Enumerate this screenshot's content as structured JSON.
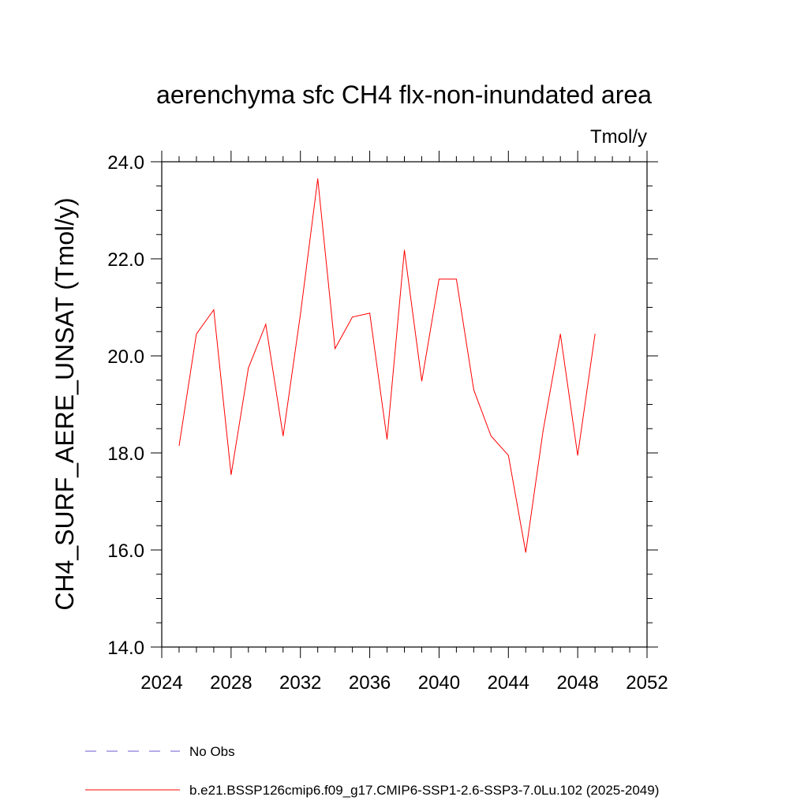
{
  "chart_data": {
    "type": "line",
    "title": "aerenchyma sfc CH4 flx-non-inundated area",
    "units_label": "Tmol/y",
    "ylabel": "CH4_SURF_AERE_UNSAT  (Tmol/y)",
    "xlabel": "",
    "xlim": [
      2024,
      2052
    ],
    "ylim": [
      14.0,
      24.0
    ],
    "x_ticks": [
      "2024",
      "2028",
      "2032",
      "2036",
      "2040",
      "2044",
      "2048",
      "2052"
    ],
    "y_ticks": [
      "14.0",
      "16.0",
      "18.0",
      "20.0",
      "22.0",
      "24.0"
    ],
    "grid": false,
    "legend_position": "bottom",
    "series": [
      {
        "name": "b.e21.BSSP126cmip6.f09_g17.CMIP6-SSP1-2.6-SSP3-7.0Lu.102 (2025-2049)",
        "color": "#ff0000",
        "style": "solid",
        "x": [
          2025,
          2026,
          2027,
          2028,
          2029,
          2030,
          2031,
          2032,
          2033,
          2034,
          2035,
          2036,
          2037,
          2038,
          2039,
          2040,
          2041,
          2042,
          2043,
          2044,
          2045,
          2046,
          2047,
          2048,
          2049
        ],
        "values": [
          18.15,
          20.45,
          20.95,
          17.55,
          19.75,
          20.65,
          18.35,
          20.85,
          23.65,
          20.15,
          20.8,
          20.88,
          18.28,
          22.18,
          19.48,
          21.58,
          21.58,
          19.3,
          18.35,
          17.95,
          15.95,
          18.45,
          20.45,
          17.95,
          20.45
        ]
      }
    ],
    "legend": [
      {
        "label": "No Obs",
        "color": "#6a5acd",
        "style": "dashed"
      },
      {
        "label": "b.e21.BSSP126cmip6.f09_g17.CMIP6-SSP1-2.6-SSP3-7.0Lu.102 (2025-2049)",
        "color": "#ff0000",
        "style": "solid"
      }
    ]
  }
}
